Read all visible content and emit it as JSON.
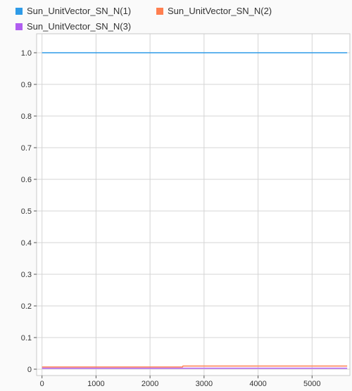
{
  "chart_data": {
    "type": "line",
    "title": "",
    "xlabel": "",
    "ylabel": "",
    "xlim": [
      -100,
      5700
    ],
    "ylim": [
      -0.02,
      1.06
    ],
    "xticks": [
      0,
      1000,
      2000,
      3000,
      4000,
      5000
    ],
    "xtick_labels": [
      "0",
      "1000",
      "2000",
      "3000",
      "4000",
      "5000"
    ],
    "yticks": [
      0,
      0.1,
      0.2,
      0.3,
      0.4,
      0.5,
      0.6,
      0.7,
      0.8,
      0.9,
      1.0
    ],
    "ytick_labels": [
      "0",
      "0.1",
      "0.2",
      "0.3",
      "0.4",
      "0.5",
      "0.6",
      "0.7",
      "0.8",
      "0.9",
      "1.0"
    ],
    "grid": true,
    "legend_position": "top-left",
    "series": [
      {
        "name": "Sun_UnitVector_SN_N(1)",
        "color": "#2e9be8",
        "x": [
          0,
          5650
        ],
        "y": [
          1.0,
          1.0
        ]
      },
      {
        "name": "Sun_UnitVector_SN_N(2)",
        "color": "#ff7f50",
        "x": [
          0,
          2600,
          2610,
          5650
        ],
        "y": [
          0.007,
          0.007,
          0.01,
          0.01
        ]
      },
      {
        "name": "Sun_UnitVector_SN_N(3)",
        "color": "#b05ef0",
        "x": [
          0,
          5650
        ],
        "y": [
          0.003,
          0.003
        ]
      }
    ]
  }
}
